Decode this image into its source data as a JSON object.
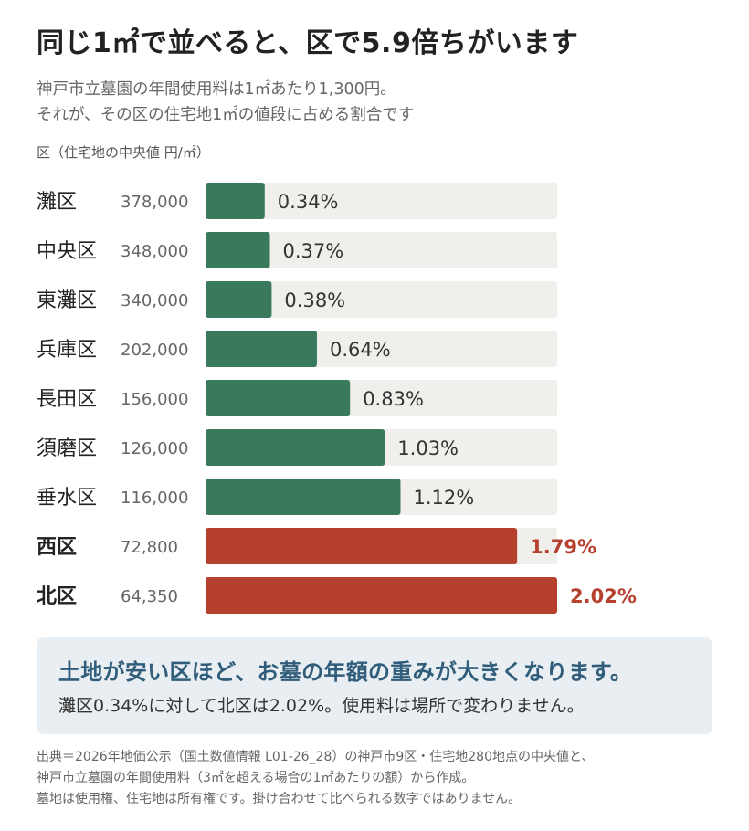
{
  "title": "同じ1㎡で並べると、区で5.9倍ちがいます",
  "subtitle_lines": [
    "神戸市立墓園の年間使用料は1㎡あたり1,300円。",
    "それが、その区の住宅地1㎡の値段に占める割合です"
  ],
  "colors": {
    "normal": "#3a7a5c",
    "highlight": "#b5402d",
    "track": "#f0efeb",
    "note_bg": "#e9eef2",
    "note_head": "#2f5d7a"
  },
  "chart_data": {
    "type": "bar",
    "orientation": "horizontal",
    "column_label": "区（住宅地の中央値 円/㎡）",
    "categories": [
      "灘区",
      "中央区",
      "東灘区",
      "兵庫区",
      "長田区",
      "須磨区",
      "垂水区",
      "西区",
      "北区"
    ],
    "land_price_labels": [
      "378,000",
      "348,000",
      "340,000",
      "202,000",
      "156,000",
      "126,000",
      "116,000",
      "72,800",
      "64,350"
    ],
    "values": [
      0.34,
      0.37,
      0.38,
      0.64,
      0.83,
      1.03,
      1.12,
      1.79,
      2.02
    ],
    "value_labels": [
      "0.34%",
      "0.37%",
      "0.38%",
      "0.64%",
      "0.83%",
      "1.03%",
      "1.12%",
      "1.79%",
      "2.02%"
    ],
    "highlighted": [
      false,
      false,
      false,
      false,
      false,
      false,
      false,
      true,
      true
    ],
    "xlim": [
      0,
      2.02
    ],
    "grid": false,
    "legend": "none"
  },
  "note": {
    "headline": "土地が安い区ほど、お墓の年額の重みが大きくなります。",
    "body": "灘区0.34%に対して北区は2.02%。使用料は場所で変わりません。"
  },
  "source_lines": [
    "出典＝2026年地価公示（国土数値情報 L01-26_28）の神戸市9区・住宅地280地点の中央値と、",
    "神戸市立墓園の年間使用料（3㎡を超える場合の1㎡あたりの額）から作成。",
    "墓地は使用権、住宅地は所有権です。掛け合わせて比べられる数字ではありません。"
  ]
}
